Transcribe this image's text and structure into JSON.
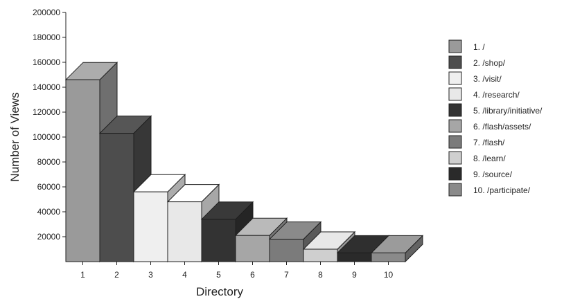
{
  "chart_data": {
    "type": "bar",
    "style": "3d-bar",
    "categories": [
      "1",
      "2",
      "3",
      "4",
      "5",
      "6",
      "7",
      "8",
      "9",
      "10"
    ],
    "values": [
      146000,
      103000,
      56000,
      48000,
      34000,
      21000,
      18000,
      10000,
      7000,
      7000
    ],
    "ylabel": "Number of Views",
    "xlabel": "Directory",
    "ylim": [
      0,
      200000
    ],
    "yticks": [
      20000,
      40000,
      60000,
      80000,
      100000,
      120000,
      140000,
      160000,
      180000,
      200000
    ],
    "grid": false,
    "legend": {
      "placement": "right",
      "entries": [
        "1. /",
        "2. /shop/",
        "3. /visit/",
        "4. /research/",
        "5. /library/initiative/",
        "6. /flash/assets/",
        "7. /flash/",
        "8. /learn/",
        "9. /source/",
        "10. /participate/"
      ]
    },
    "colors": [
      "#9a9a9a",
      "#4d4d4d",
      "#efefef",
      "#e8e8e8",
      "#333333",
      "#a6a6a6",
      "#7b7b7b",
      "#cfcfcf",
      "#2a2a2a",
      "#8a8a8a"
    ]
  }
}
